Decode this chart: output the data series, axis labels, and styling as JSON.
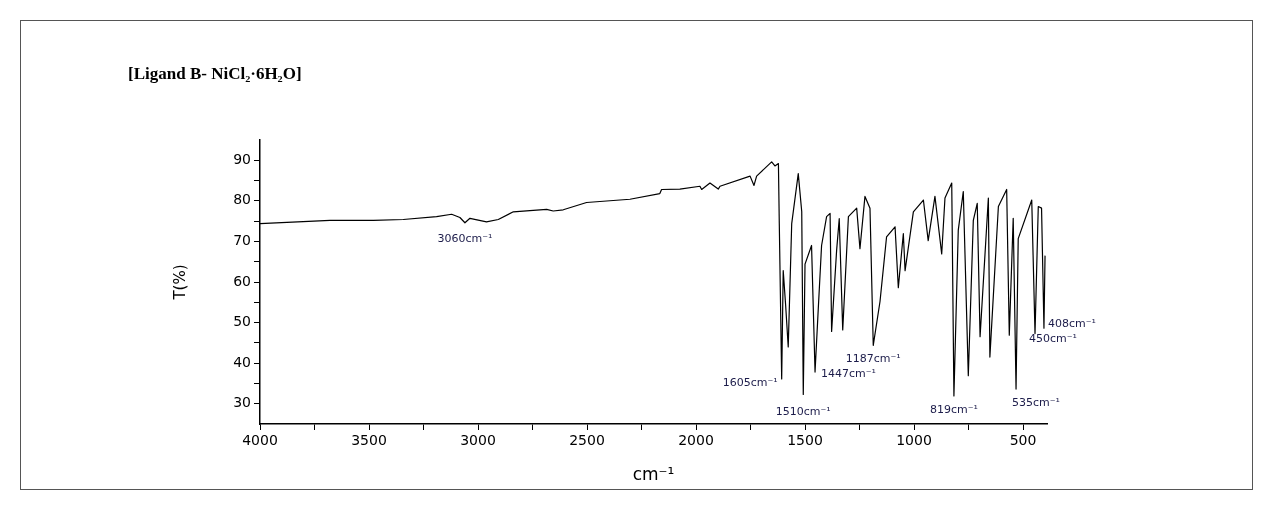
{
  "chart_data": {
    "type": "line",
    "title": "[Ligand B- NiCl₂·6H₂O]",
    "xlabel": "cm⁻¹",
    "ylabel": "T(%)",
    "xlim": [
      4000,
      390
    ],
    "xticks": [
      4000,
      {
        "value": 3750,
        "label": null
      },
      3500,
      {
        "value": 3250,
        "label": null
      },
      3000,
      {
        "value": 2750,
        "label": null
      },
      2500,
      {
        "value": 2250,
        "label": null
      },
      2000,
      {
        "value": 1750,
        "label": null
      },
      1500,
      {
        "value": 1250,
        "label": null
      },
      1000,
      {
        "value": 750,
        "label": null
      },
      500
    ],
    "ylim": [
      25,
      95
    ],
    "yticks": [
      30,
      {
        "value": 35,
        "label": null
      },
      40,
      {
        "value": 45,
        "label": null
      },
      50,
      {
        "value": 55,
        "label": null
      },
      60,
      {
        "value": 65,
        "label": null
      },
      70,
      {
        "value": 75,
        "label": null
      },
      80,
      {
        "value": 85,
        "label": null
      },
      90
    ],
    "grid": false,
    "legend": false,
    "marker": "none",
    "line_style": "solid",
    "series": [
      {
        "color": "#000000",
        "x": [
          4000,
          3679,
          3480,
          3343,
          3190,
          3121,
          3083,
          3060,
          3037,
          2961,
          2907,
          2838,
          2762,
          2685,
          2655,
          2609,
          2502,
          2303,
          2166,
          2158,
          2074,
          1982,
          1974,
          1936,
          1898,
          1890,
          1752,
          1734,
          1722,
          1653,
          1638,
          1622,
          1618,
          1607,
          1600,
          1589,
          1577,
          1561,
          1531,
          1515,
          1508,
          1500,
          1470,
          1454,
          1439,
          1424,
          1401,
          1385,
          1378,
          1355,
          1343,
          1327,
          1301,
          1263,
          1248,
          1225,
          1202,
          1187,
          1156,
          1126,
          1087,
          1072,
          1049,
          1041,
          1003,
          957,
          935,
          904,
          873,
          858,
          827,
          817,
          797,
          774,
          751,
          728,
          710,
          697,
          659,
          652,
          613,
          575,
          563,
          545,
          532,
          522,
          460,
          445,
          430,
          415,
          404,
          399
        ],
        "values": [
          74.4,
          75.2,
          75.2,
          75.4,
          76.1,
          76.7,
          75.9,
          74.6,
          75.7,
          74.8,
          75.4,
          77.3,
          77.6,
          77.9,
          77.5,
          77.8,
          79.6,
          80.4,
          81.8,
          82.8,
          82.9,
          83.6,
          82.8,
          84.4,
          82.9,
          83.6,
          86.1,
          83.8,
          86.1,
          89.6,
          88.6,
          89.2,
          74.4,
          36.1,
          62.8,
          54.4,
          44,
          74.4,
          86.7,
          77.3,
          32.3,
          64.4,
          69,
          37.8,
          53.6,
          69,
          76.1,
          76.9,
          47.8,
          67.8,
          75.6,
          48.2,
          76.1,
          78.2,
          68.2,
          81.1,
          78.2,
          44.4,
          55.2,
          71.1,
          73.6,
          58.6,
          71.9,
          62.8,
          77.3,
          80.2,
          70.2,
          81.1,
          66.9,
          80.7,
          84.4,
          31.9,
          72.8,
          82.3,
          36.9,
          75.2,
          79.4,
          46.5,
          80.7,
          41.5,
          78.6,
          82.8,
          46.9,
          75.7,
          33.6,
          70.7,
          80.2,
          47.3,
          78.6,
          78.2,
          48.6,
          66.5
        ]
      }
    ],
    "annotations": [
      {
        "text": "3060cm⁻¹",
        "x": 3060,
        "y": 74.6
      },
      {
        "text": "1605cm⁻¹",
        "x": 1607,
        "y": 36.1
      },
      {
        "text": "1510cm⁻¹",
        "x": 1508,
        "y": 32.3
      },
      {
        "text": "1447cm⁻¹",
        "x": 1454,
        "y": 37.8
      },
      {
        "text": "1187cm⁻¹",
        "x": 1187,
        "y": 44.4
      },
      {
        "text": "819cm⁻¹",
        "x": 817,
        "y": 31.9
      },
      {
        "text": "535cm⁻¹",
        "x": 532,
        "y": 33.6
      },
      {
        "text": "450cm⁻¹",
        "x": 445,
        "y": 47.3
      },
      {
        "text": "408cm⁻¹",
        "x": 404,
        "y": 48.6
      }
    ]
  }
}
